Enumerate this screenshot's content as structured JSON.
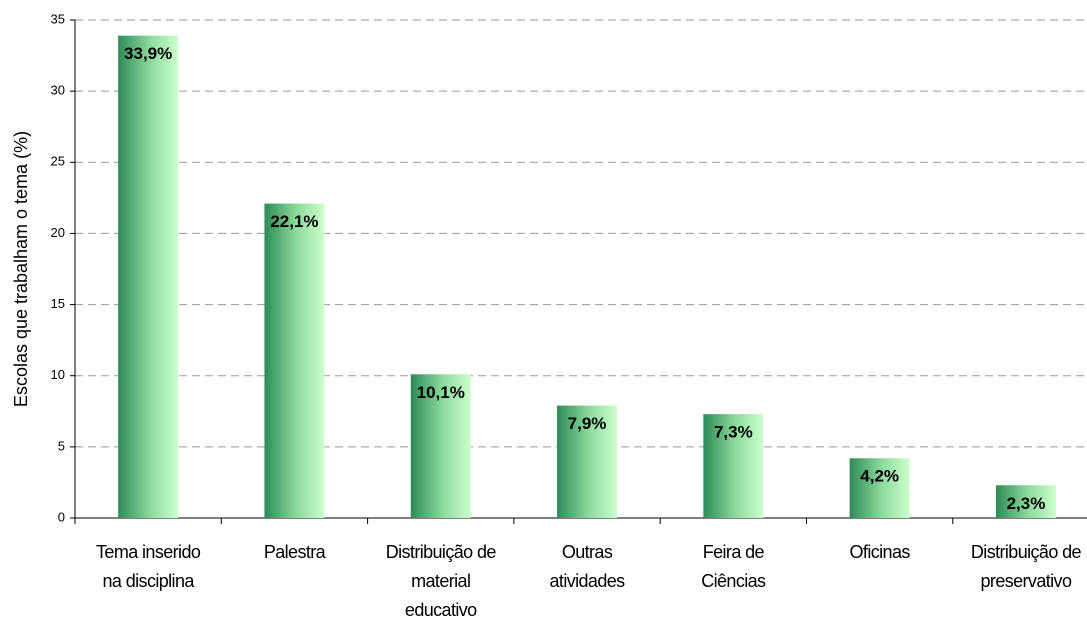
{
  "chart_data": {
    "type": "bar",
    "y_label": "Escolas que trabalham o tema (%)",
    "categories": [
      [
        "Tema inserido",
        "na disciplina"
      ],
      [
        "Palestra"
      ],
      [
        "Distribuição de",
        "material",
        "educativo"
      ],
      [
        "Outras",
        "atividades"
      ],
      [
        "Feira  de",
        "Ciências"
      ],
      [
        "Oficinas"
      ],
      [
        "Distribuição de",
        "preservativo"
      ]
    ],
    "values": [
      33.9,
      22.1,
      10.1,
      7.9,
      7.3,
      4.2,
      2.3
    ],
    "value_labels": [
      "33,9%",
      "22,1%",
      "10,1%",
      "7,9%",
      "7,3%",
      "4,2%",
      "2,3%"
    ],
    "color": "#2e8b57",
    "ylim": [
      0,
      35
    ],
    "yticks": [
      0,
      5,
      10,
      15,
      20,
      25,
      30,
      35
    ],
    "grid": true
  }
}
